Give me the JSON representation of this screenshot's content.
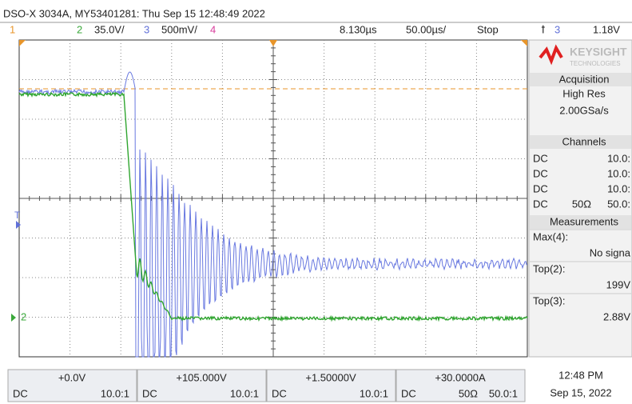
{
  "header": {
    "title": "DSO-X 3034A, MY53401281: Thu Sep 15 12:48:49 2022"
  },
  "status": {
    "ch1": "1",
    "ch2": "2",
    "ch2_scale": "35.0V/",
    "ch3": "3",
    "ch3_scale": "500mV/",
    "ch4": "4",
    "delay": "8.130µs",
    "timebase": "50.00µs/",
    "run_state": "Stop",
    "trigger_source": "3",
    "trigger_level": "1.18V"
  },
  "markers": {
    "trigger": "T",
    "ground": "2"
  },
  "panel": {
    "brand": "KEYSIGHT",
    "brand_sub": "TECHNOLOGIES",
    "acquisition": {
      "title": "Acquisition",
      "mode": "High Res",
      "rate": "2.00GSa/s"
    },
    "channels": {
      "title": "Channels",
      "rows": [
        {
          "coupling": "DC",
          "scale": "10.0:"
        },
        {
          "coupling": "DC",
          "scale": "10.0:"
        },
        {
          "coupling": "DC",
          "scale": "10.0:"
        },
        {
          "coupling": "DC",
          "impedance": "50Ω",
          "scale": "50.0:"
        }
      ]
    },
    "measurements": {
      "title": "Measurements",
      "items": [
        {
          "label": "Max(4):",
          "value": "No signa"
        },
        {
          "label": "Top(2):",
          "value": "199V"
        },
        {
          "label": "Top(3):",
          "value": "2.88V"
        }
      ]
    }
  },
  "footer": {
    "channels": [
      {
        "offset": "+0.0V",
        "coupling": "DC",
        "probe": "10.0:1"
      },
      {
        "offset": "+105.000V",
        "coupling": "DC",
        "probe": "10.0:1"
      },
      {
        "offset": "+1.50000V",
        "coupling": "DC",
        "probe": "10.0:1"
      },
      {
        "offset": "+30.0000A",
        "coupling": "DC",
        "impedance": "50Ω",
        "probe": "50.0:1"
      }
    ],
    "clock": {
      "time": "12:48 PM",
      "date": "Sep 15, 2022"
    }
  }
}
